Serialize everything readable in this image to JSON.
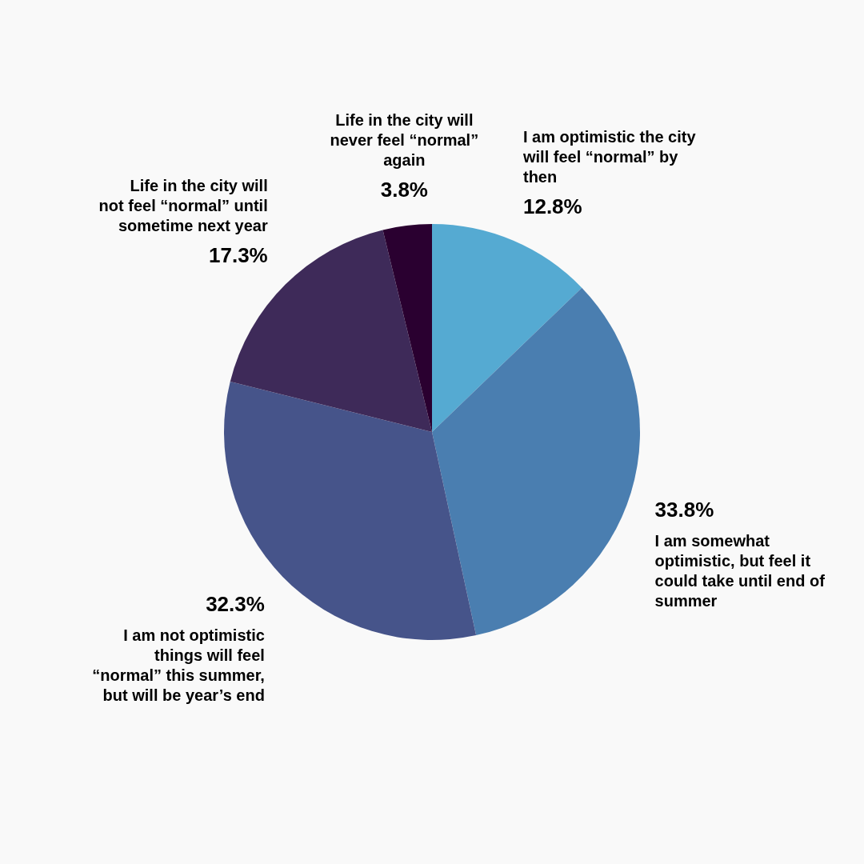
{
  "chart_data": {
    "type": "pie",
    "categories": [
      "I am optimistic the city will feel “normal” by then",
      "I am somewhat optimistic, but feel it could take until end of summer",
      "I am not optimistic things will feel “normal” this summer, but will be year’s end",
      "Life in the city will not feel “normal” until sometime next year",
      "Life in the city will never feel “normal” again"
    ],
    "values": [
      12.8,
      33.8,
      32.3,
      17.3,
      3.8
    ],
    "colors": [
      "#55aad2",
      "#4a7eb0",
      "#46548a",
      "#3e2a59",
      "#2a0030"
    ],
    "value_labels": [
      "12.8%",
      "33.8%",
      "32.3%",
      "17.3%",
      "3.8%"
    ]
  }
}
